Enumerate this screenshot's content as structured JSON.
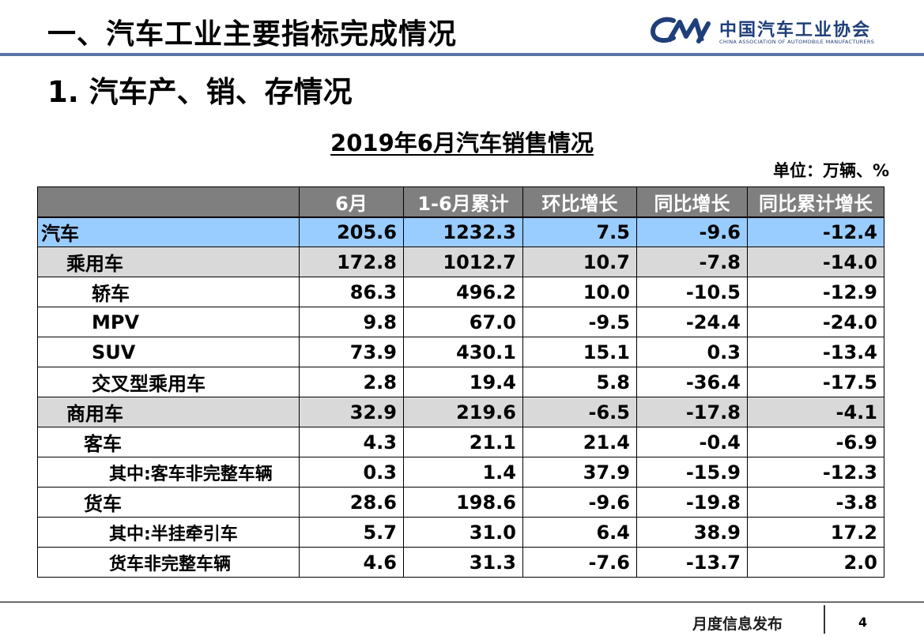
{
  "header": {
    "title": "一、汽车工业主要指标完成情况",
    "logo_cn": "中国汽车工业协会",
    "logo_en": "CHINA ASSOCIATION OF AUTOMOBILE MANUFACTURERS"
  },
  "section_title": "1. 汽车产、销、存情况",
  "table": {
    "title": "2019年6月汽车销售情况",
    "unit": "单位：万辆、%",
    "headers": [
      "",
      "6月",
      "1-6月累计",
      "环比增长",
      "同比增长",
      "同比累计增长"
    ],
    "rows": [
      {
        "name": "汽车",
        "values": [
          "205.6",
          "1232.3",
          "7.5",
          "-9.6",
          "-12.4"
        ]
      },
      {
        "name": "乘用车",
        "values": [
          "172.8",
          "1012.7",
          "10.7",
          "-7.8",
          "-14.0"
        ]
      },
      {
        "name": "轿车",
        "values": [
          "86.3",
          "496.2",
          "10.0",
          "-10.5",
          "-12.9"
        ]
      },
      {
        "name": "MPV",
        "values": [
          "9.8",
          "67.0",
          "-9.5",
          "-24.4",
          "-24.0"
        ]
      },
      {
        "name": "SUV",
        "values": [
          "73.9",
          "430.1",
          "15.1",
          "0.3",
          "-13.4"
        ]
      },
      {
        "name": "交叉型乘用车",
        "values": [
          "2.8",
          "19.4",
          "5.8",
          "-36.4",
          "-17.5"
        ]
      },
      {
        "name": "商用车",
        "values": [
          "32.9",
          "219.6",
          "-6.5",
          "-17.8",
          "-4.1"
        ]
      },
      {
        "name": "客车",
        "values": [
          "4.3",
          "21.1",
          "21.4",
          "-0.4",
          "-6.9"
        ]
      },
      {
        "name": "其中:客车非完整车辆",
        "values": [
          "0.3",
          "1.4",
          "37.9",
          "-15.9",
          "-12.3"
        ]
      },
      {
        "name": "货车",
        "values": [
          "28.6",
          "198.6",
          "-9.6",
          "-19.8",
          "-3.8"
        ]
      },
      {
        "name": "其中:半挂牵引车",
        "values": [
          "5.7",
          "31.0",
          "6.4",
          "38.9",
          "17.2"
        ]
      },
      {
        "name": "货车非完整车辆",
        "values": [
          "4.6",
          "31.3",
          "-7.6",
          "-13.7",
          "2.0"
        ]
      }
    ]
  },
  "footer": {
    "label": "月度信息发布",
    "page_number": "4"
  },
  "colors": {
    "header_rule": "#5a74a8",
    "table_header_bg": "#7f7f7f",
    "row_highlight_blue": "#99ccff",
    "row_highlight_gray": "#d9d9d9",
    "logo_blue": "#1f3f7a"
  }
}
